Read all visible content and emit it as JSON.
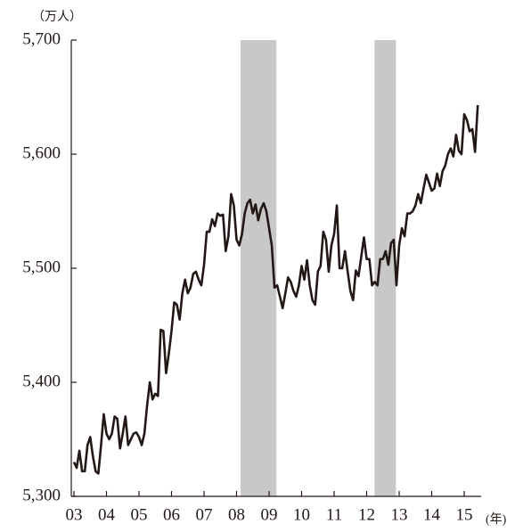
{
  "chart_data": {
    "type": "line",
    "y_unit": "（万人）",
    "x_unit": "(年)",
    "categories": [
      "03",
      null,
      null,
      null,
      null,
      null,
      null,
      null,
      null,
      null,
      null,
      null,
      "04",
      null,
      null,
      null,
      null,
      null,
      null,
      null,
      null,
      null,
      null,
      null,
      "05",
      null,
      null,
      null,
      null,
      null,
      null,
      null,
      null,
      null,
      null,
      null,
      "06",
      null,
      null,
      null,
      null,
      null,
      null,
      null,
      null,
      null,
      null,
      null,
      "07",
      null,
      null,
      null,
      null,
      null,
      null,
      null,
      null,
      null,
      null,
      null,
      "08",
      null,
      null,
      null,
      null,
      null,
      null,
      null,
      null,
      null,
      null,
      null,
      "09",
      null,
      null,
      null,
      null,
      null,
      null,
      null,
      null,
      null,
      null,
      null,
      "10",
      null,
      null,
      null,
      null,
      null,
      null,
      null,
      null,
      null,
      null,
      null,
      "11",
      null,
      null,
      null,
      null,
      null,
      null,
      null,
      null,
      null,
      null,
      null,
      "12",
      null,
      null,
      null,
      null,
      null,
      null,
      null,
      null,
      null,
      null,
      null,
      "13",
      null,
      null,
      null,
      null,
      null,
      null,
      null,
      null,
      null,
      null,
      null,
      "14",
      null,
      null,
      null,
      null,
      null,
      null,
      null,
      null,
      null,
      null,
      null,
      "15",
      null,
      null,
      null,
      null,
      null
    ],
    "values": [
      5330,
      5325,
      5340,
      5322,
      5322,
      5345,
      5352,
      5335,
      5322,
      5320,
      5345,
      5372,
      5355,
      5350,
      5355,
      5370,
      5368,
      5342,
      5355,
      5370,
      5345,
      5350,
      5355,
      5356,
      5352,
      5345,
      5355,
      5380,
      5400,
      5385,
      5390,
      5388,
      5446,
      5445,
      5408,
      5425,
      5445,
      5470,
      5468,
      5455,
      5478,
      5490,
      5478,
      5483,
      5495,
      5497,
      5490,
      5485,
      5503,
      5532,
      5532,
      5543,
      5537,
      5548,
      5546,
      5547,
      5515,
      5528,
      5565,
      5555,
      5525,
      5520,
      5530,
      5548,
      5557,
      5560,
      5548,
      5556,
      5542,
      5552,
      5557,
      5550,
      5535,
      5520,
      5483,
      5485,
      5475,
      5465,
      5478,
      5492,
      5488,
      5480,
      5475,
      5485,
      5502,
      5490,
      5507,
      5485,
      5472,
      5468,
      5497,
      5502,
      5532,
      5525,
      5497,
      5520,
      5530,
      5555,
      5500,
      5500,
      5515,
      5497,
      5480,
      5472,
      5498,
      5493,
      5510,
      5527,
      5508,
      5508,
      5485,
      5488,
      5485,
      5508,
      5508,
      5515,
      5503,
      5522,
      5525,
      5485,
      5520,
      5535,
      5528,
      5548,
      5548,
      5550,
      5555,
      5565,
      5557,
      5570,
      5582,
      5575,
      5568,
      5570,
      5583,
      5572,
      5585,
      5590,
      5600,
      5605,
      5598,
      5617,
      5603,
      5600,
      5635,
      5630,
      5620,
      5622,
      5602,
      5643
    ],
    "color": "#231815",
    "shaded_ranges": [
      [
        61.5,
        74.7
      ],
      [
        110.9,
        118.8
      ]
    ],
    "shade_color": "#c8c8c8",
    "ylim": [
      5300,
      5700
    ],
    "yticks": [
      {
        "value": 5300,
        "label": "5,300"
      },
      {
        "value": 5400,
        "label": "5,400"
      },
      {
        "value": 5500,
        "label": "5,500"
      },
      {
        "value": 5600,
        "label": "5,600"
      },
      {
        "value": 5700,
        "label": "5,700"
      }
    ],
    "grid": false
  }
}
